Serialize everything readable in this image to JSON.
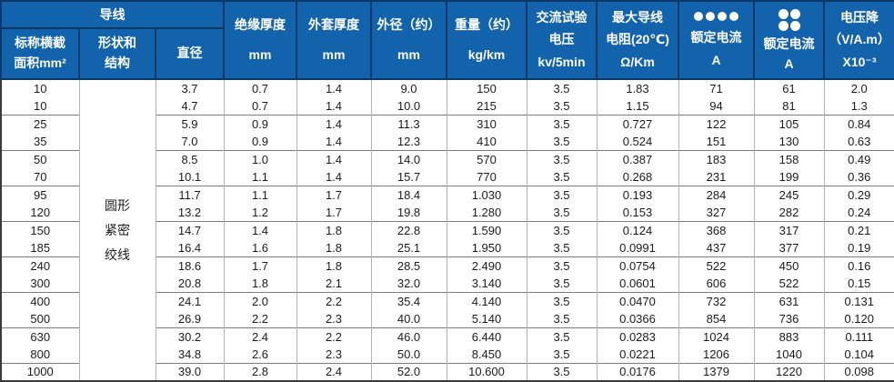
{
  "colors": {
    "header_bg": "#1263ac",
    "header_line": "#0b3764",
    "outer_border": "#3a3a3a",
    "column_line": "#b3b3b3",
    "group_line": "#7d7d7d",
    "header_text": "#ffffff",
    "data_text": "#1c1c1c"
  },
  "table": {
    "header": {
      "group_conductor": "导线",
      "area": [
        "标称横截",
        "面积mm²"
      ],
      "shape": [
        "形状和",
        "结构"
      ],
      "diameter": "直径",
      "insulation": [
        "绝缘厚度",
        "mm"
      ],
      "sheath": [
        "外套厚度",
        "mm"
      ],
      "outer_diameter": [
        "外径（约）",
        "mm"
      ],
      "weight": [
        "重量（约）",
        "kg/km"
      ],
      "test_voltage": [
        "交流试验",
        "电压",
        "kv/5min"
      ],
      "resistance": [
        "最大导线",
        "电阻(20℃)",
        "Ω/Km"
      ],
      "current_row_dots": {
        "icon": "four-dots-row",
        "label": "额定电流",
        "unit": "A"
      },
      "current_grid_dots": {
        "icon": "four-dots-grid",
        "label": "额定电流",
        "unit": "A"
      },
      "voltage_drop": [
        "电压降",
        "（V/A.m）",
        "X10⁻³"
      ]
    },
    "shape_cell": [
      "圆形",
      "紧密",
      "绞线"
    ],
    "rows": [
      [
        "10",
        "3.7",
        "0.7",
        "1.4",
        "9.0",
        "150",
        "3.5",
        "1.83",
        "71",
        "61",
        "2.0"
      ],
      [
        "10",
        "4.7",
        "0.7",
        "1.4",
        "10.0",
        "215",
        "3.5",
        "1.15",
        "94",
        "81",
        "1.3"
      ],
      [
        "25",
        "5.9",
        "0.9",
        "1.4",
        "11.3",
        "310",
        "3.5",
        "0.727",
        "122",
        "105",
        "0.84"
      ],
      [
        "35",
        "7.0",
        "0.9",
        "1.4",
        "12.3",
        "410",
        "3.5",
        "0.524",
        "151",
        "130",
        "0.63"
      ],
      [
        "50",
        "8.5",
        "1.0",
        "1.4",
        "14.0",
        "570",
        "3.5",
        "0.387",
        "183",
        "158",
        "0.49"
      ],
      [
        "70",
        "10.1",
        "1.1",
        "1.4",
        "15.7",
        "770",
        "3.5",
        "0.268",
        "231",
        "199",
        "0.36"
      ],
      [
        "95",
        "11.7",
        "1.1",
        "1.7",
        "18.4",
        "1.030",
        "3.5",
        "0.193",
        "284",
        "245",
        "0.29"
      ],
      [
        "120",
        "13.2",
        "1.2",
        "1.7",
        "19.8",
        "1.280",
        "3.5",
        "0.153",
        "327",
        "282",
        "0.24"
      ],
      [
        "150",
        "14.7",
        "1.4",
        "1.8",
        "22.8",
        "1.590",
        "3.5",
        "0.124",
        "368",
        "317",
        "0.21"
      ],
      [
        "185",
        "16.4",
        "1.6",
        "1.8",
        "25.1",
        "1.950",
        "3.5",
        "0.0991",
        "437",
        "377",
        "0.19"
      ],
      [
        "240",
        "18.6",
        "1.7",
        "1.8",
        "28.5",
        "2.490",
        "3.5",
        "0.0754",
        "522",
        "450",
        "0.16"
      ],
      [
        "300",
        "20.8",
        "1.8",
        "2.1",
        "32.0",
        "3.140",
        "3.5",
        "0.0601",
        "606",
        "522",
        "0.15"
      ],
      [
        "400",
        "24.1",
        "2.0",
        "2.2",
        "35.4",
        "4.140",
        "3.5",
        "0.0470",
        "732",
        "631",
        "0.131"
      ],
      [
        "500",
        "26.9",
        "2.2",
        "2.3",
        "40.0",
        "5.140",
        "3.5",
        "0.0366",
        "854",
        "736",
        "0.120"
      ],
      [
        "630",
        "30.2",
        "2.4",
        "2.2",
        "46.0",
        "6.440",
        "3.5",
        "0.0283",
        "1024",
        "883",
        "0.111"
      ],
      [
        "800",
        "34.8",
        "2.6",
        "2.3",
        "50.0",
        "8.450",
        "3.5",
        "0.0221",
        "1206",
        "1040",
        "0.104"
      ],
      [
        "1000",
        "39.0",
        "2.8",
        "2.4",
        "52.0",
        "10.600",
        "3.5",
        "0.0176",
        "1379",
        "1220",
        "0.098"
      ]
    ],
    "group_start_row_indices": [
      2,
      4,
      6,
      8,
      10,
      12,
      14,
      16
    ]
  }
}
